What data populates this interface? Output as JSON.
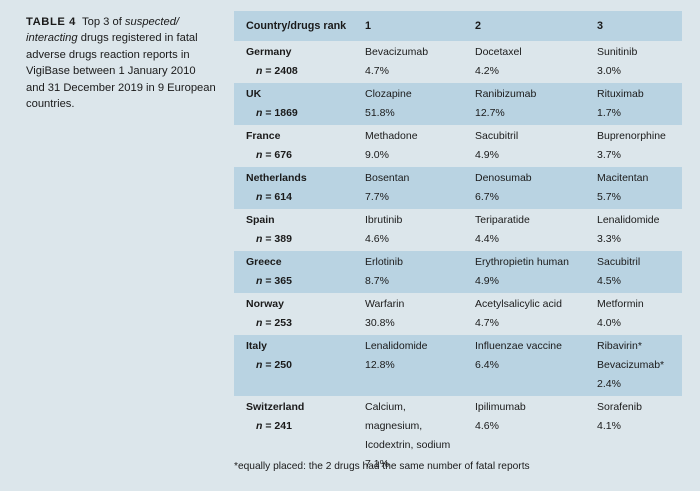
{
  "caption": {
    "label": "TABLE 4",
    "text_part1": "Top 3 of ",
    "text_italic": "suspected/ interacting",
    "text_part2": " drugs registered in fatal adverse drugs reaction reports in VigiBase between 1 January 2010 and 31 December 2019 in 9 European countries."
  },
  "table": {
    "headers": [
      "Country/drugs rank",
      "1",
      "2",
      "3"
    ],
    "rows": [
      {
        "country": "Germany",
        "n": "= 2408",
        "cells": [
          [
            "Bevacizumab",
            "4.7%"
          ],
          [
            "Docetaxel",
            "4.2%"
          ],
          [
            "Sunitinib",
            "3.0%"
          ]
        ]
      },
      {
        "country": "UK",
        "n": "= 1869",
        "cells": [
          [
            "Clozapine",
            "51.8%"
          ],
          [
            "Ranibizumab",
            "12.7%"
          ],
          [
            "Rituximab",
            "1.7%"
          ]
        ]
      },
      {
        "country": "France",
        "n": "= 676",
        "cells": [
          [
            "Methadone",
            "9.0%"
          ],
          [
            "Sacubitril",
            "4.9%"
          ],
          [
            "Buprenorphine",
            "3.7%"
          ]
        ]
      },
      {
        "country": "Netherlands",
        "n": "= 614",
        "cells": [
          [
            "Bosentan",
            "7.7%"
          ],
          [
            "Denosumab",
            "6.7%"
          ],
          [
            "Macitentan",
            "5.7%"
          ]
        ]
      },
      {
        "country": "Spain",
        "n": "= 389",
        "cells": [
          [
            "Ibrutinib",
            "4.6%"
          ],
          [
            "Teriparatide",
            "4.4%"
          ],
          [
            "Lenalidomide",
            "3.3%"
          ]
        ]
      },
      {
        "country": "Greece",
        "n": "= 365",
        "cells": [
          [
            "Erlotinib",
            "8.7%"
          ],
          [
            "Erythropietin human",
            "4.9%"
          ],
          [
            "Sacubitril",
            "4.5%"
          ]
        ]
      },
      {
        "country": "Norway",
        "n": "= 253",
        "cells": [
          [
            "Warfarin",
            "30.8%"
          ],
          [
            "Acetylsalicylic acid",
            "4.7%"
          ],
          [
            "Metformin",
            "4.0%"
          ]
        ]
      },
      {
        "country": "Italy",
        "n": "= 250",
        "cells": [
          [
            "Lenalidomide",
            "12.8%"
          ],
          [
            "Influenzae vaccine",
            "6.4%"
          ],
          [
            "Ribavirin*",
            "Bevacizumab*",
            "2.4%"
          ]
        ]
      },
      {
        "country": "Switzerland",
        "n": "= 241",
        "cells": [
          [
            "Calcium, magnesium,",
            "Icodextrin, sodium",
            "7.1%"
          ],
          [
            "Ipilimumab",
            "4.6%"
          ],
          [
            "Sorafenib",
            "4.1%"
          ]
        ]
      }
    ]
  },
  "footnote": "*equally placed: the 2 drugs had the same number of fatal reports",
  "colors": {
    "background": "#dce6eb",
    "shaded_row": "#b9d3e2"
  }
}
